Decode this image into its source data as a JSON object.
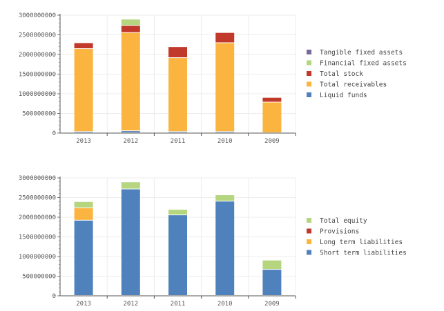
{
  "chart_data": [
    {
      "type": "bar",
      "stacked": true,
      "title": "",
      "xlabel": "",
      "ylabel": "",
      "ylim": [
        0,
        3000000000
      ],
      "yticks": [
        "0",
        "500000000",
        "1000000000",
        "1500000000",
        "2000000000",
        "2500000000",
        "3000000000"
      ],
      "categories": [
        "2013",
        "2012",
        "2011",
        "2010",
        "2009"
      ],
      "legend_position": "right",
      "grid": true,
      "series": [
        {
          "name": "Liquid funds",
          "color": "#4f81bd",
          "values": [
            30000000,
            50000000,
            30000000,
            30000000,
            0
          ]
        },
        {
          "name": "Total receivables",
          "color": "#fbb440",
          "values": [
            2110000000,
            2500000000,
            1880000000,
            2260000000,
            780000000
          ]
        },
        {
          "name": "Total stock",
          "color": "#c0392b",
          "values": [
            150000000,
            180000000,
            280000000,
            260000000,
            120000000
          ]
        },
        {
          "name": "Financial fixed assets",
          "color": "#b5d57f",
          "values": [
            0,
            160000000,
            0,
            0,
            0
          ]
        },
        {
          "name": "Tangible fixed assets",
          "color": "#7a6a9a",
          "values": [
            0,
            0,
            0,
            0,
            0
          ]
        }
      ]
    },
    {
      "type": "bar",
      "stacked": true,
      "title": "",
      "xlabel": "",
      "ylabel": "",
      "ylim": [
        0,
        3000000000
      ],
      "yticks": [
        "0",
        "500000000",
        "1000000000",
        "1500000000",
        "2000000000",
        "2500000000",
        "3000000000"
      ],
      "categories": [
        "2013",
        "2012",
        "2011",
        "2010",
        "2009"
      ],
      "legend_position": "right",
      "grid": true,
      "series": [
        {
          "name": "Short term liabilities",
          "color": "#4f81bd",
          "values": [
            1915000000,
            2710000000,
            2050000000,
            2400000000,
            665000000
          ]
        },
        {
          "name": "Long term liabilities",
          "color": "#fbb440",
          "values": [
            315000000,
            0,
            0,
            0,
            0
          ]
        },
        {
          "name": "Provisions",
          "color": "#c0392b",
          "values": [
            0,
            0,
            0,
            0,
            0
          ]
        },
        {
          "name": "Total equity",
          "color": "#b5d57f",
          "values": [
            160000000,
            180000000,
            140000000,
            160000000,
            235000000
          ]
        }
      ]
    }
  ]
}
